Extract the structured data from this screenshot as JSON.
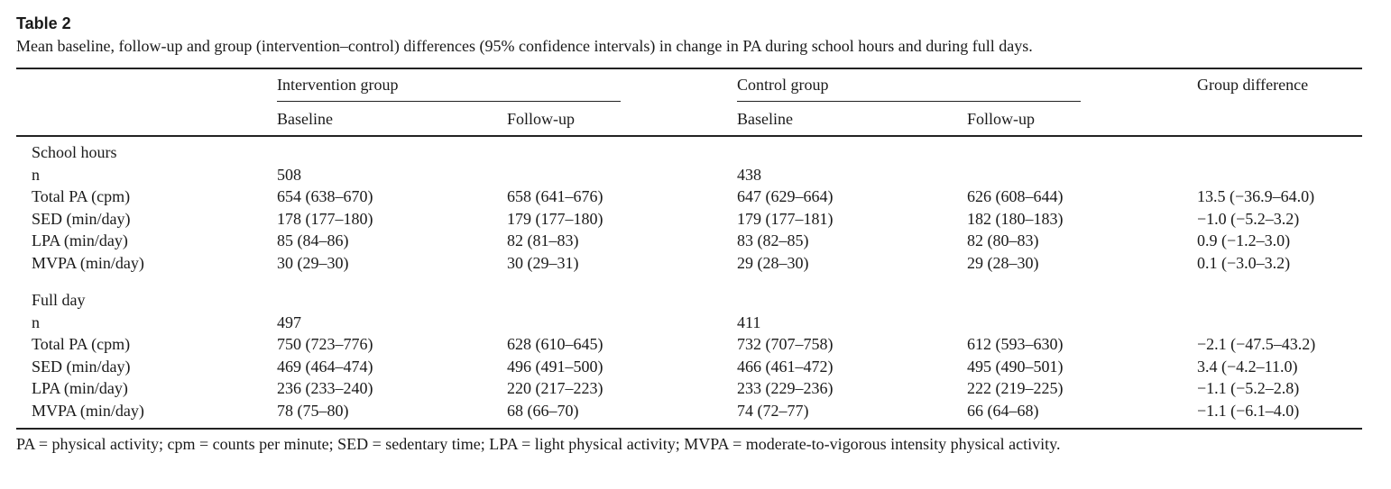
{
  "table": {
    "label": "Table 2",
    "caption": "Mean baseline, follow-up and group (intervention–control) differences (95% confidence intervals) in change in PA during school hours and during full days.",
    "header": {
      "intervention_group": "Intervention group",
      "control_group": "Control group",
      "group_difference": "Group difference",
      "baseline": "Baseline",
      "follow_up": "Follow-up"
    },
    "sections": [
      {
        "title": "School hours",
        "rows": [
          {
            "label": "n",
            "ib": "508",
            "if": "",
            "cb": "438",
            "cf": "",
            "diff": ""
          },
          {
            "label": "Total PA (cpm)",
            "ib": "654 (638–670)",
            "if": "658 (641–676)",
            "cb": "647 (629–664)",
            "cf": "626 (608–644)",
            "diff": "13.5 (−36.9–64.0)"
          },
          {
            "label": "SED (min/day)",
            "ib": "178 (177–180)",
            "if": "179 (177–180)",
            "cb": "179 (177–181)",
            "cf": "182 (180–183)",
            "diff": "−1.0 (−5.2–3.2)"
          },
          {
            "label": "LPA (min/day)",
            "ib": "85 (84–86)",
            "if": "82 (81–83)",
            "cb": "83 (82–85)",
            "cf": "82 (80–83)",
            "diff": "0.9 (−1.2–3.0)"
          },
          {
            "label": "MVPA (min/day)",
            "ib": "30 (29–30)",
            "if": "30 (29–31)",
            "cb": "29 (28–30)",
            "cf": "29 (28–30)",
            "diff": "0.1 (−3.0–3.2)"
          }
        ]
      },
      {
        "title": "Full day",
        "rows": [
          {
            "label": "n",
            "ib": "497",
            "if": "",
            "cb": "411",
            "cf": "",
            "diff": ""
          },
          {
            "label": "Total PA (cpm)",
            "ib": "750 (723–776)",
            "if": "628 (610–645)",
            "cb": "732 (707–758)",
            "cf": "612 (593–630)",
            "diff": "−2.1 (−47.5–43.2)"
          },
          {
            "label": "SED (min/day)",
            "ib": "469 (464–474)",
            "if": "496 (491–500)",
            "cb": "466 (461–472)",
            "cf": "495 (490–501)",
            "diff": "3.4 (−4.2–11.0)"
          },
          {
            "label": "LPA (min/day)",
            "ib": "236 (233–240)",
            "if": "220 (217–223)",
            "cb": "233 (229–236)",
            "cf": "222 (219–225)",
            "diff": "−1.1 (−5.2–2.8)"
          },
          {
            "label": "MVPA (min/day)",
            "ib": "78 (75–80)",
            "if": "68 (66–70)",
            "cb": "74 (72–77)",
            "cf": "66 (64–68)",
            "diff": "−1.1 (−6.1–4.0)"
          }
        ]
      }
    ],
    "footnote": "PA = physical activity; cpm = counts per minute; SED = sedentary time; LPA = light physical activity; MVPA = moderate-to-vigorous intensity physical activity."
  }
}
